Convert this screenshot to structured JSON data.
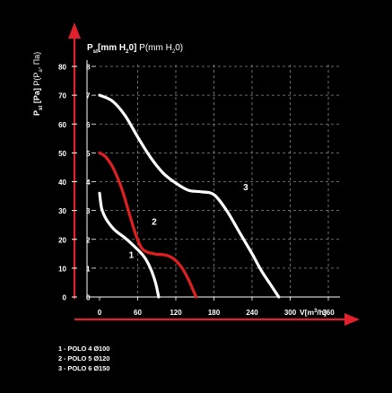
{
  "chart_data": {
    "type": "line",
    "title_pressure_mm": "P",
    "title_pressure_mm_sub": "st",
    "title_pressure_mm_units": "[mm H",
    "title_pressure_mm_units_sub": "2",
    "title_pressure_mm_units_end": "0]",
    "title_pressure_mm_alt": " P(mm H",
    "title_pressure_mm_alt_sub": "2",
    "title_pressure_mm_alt_end": "0)",
    "ylabel_pa_main": "P",
    "ylabel_pa_sub": "st",
    "ylabel_pa_rest": " [Pa]",
    "ylabel_pa_alt": " P(P",
    "ylabel_pa_alt_sub": "a",
    "ylabel_pa_alt_end": ", Па)",
    "xlabel_main": "V[m",
    "xlabel_sup": "3",
    "xlabel_end": "/h]",
    "x_ticks": [
      "0",
      "60",
      "120",
      "180",
      "240",
      "300",
      "360"
    ],
    "x_tick_values": [
      0,
      60,
      120,
      180,
      240,
      300,
      360
    ],
    "y_ticks_pa": [
      "0",
      "10",
      "20",
      "30",
      "40",
      "50",
      "60",
      "70",
      "80"
    ],
    "y_ticks_mm": [
      "0",
      "1",
      "2",
      "3",
      "4",
      "5",
      "6",
      "7",
      "8"
    ],
    "y_tick_values_pa": [
      0,
      10,
      20,
      30,
      40,
      50,
      60,
      70,
      80
    ],
    "xlim": [
      0,
      390
    ],
    "ylim_pa": [
      0,
      80
    ],
    "ylim_mm": [
      0,
      8
    ],
    "grid": true,
    "series": [
      {
        "name": "1",
        "color": "#ffffff",
        "x": [
          0,
          3,
          8,
          15,
          25,
          40,
          55,
          70,
          80,
          88,
          93
        ],
        "y": [
          36,
          31,
          28,
          25.5,
          23,
          20.5,
          17.5,
          14,
          10,
          5,
          0
        ]
      },
      {
        "name": "2",
        "color": "#e02020",
        "x": [
          0,
          10,
          22,
          35,
          48,
          58,
          68,
          85,
          105,
          118,
          130,
          140,
          148,
          152
        ],
        "y": [
          50,
          48.5,
          44.5,
          37.5,
          28,
          21,
          16.5,
          15,
          14.5,
          13,
          10,
          6,
          2,
          0
        ]
      },
      {
        "name": "3",
        "color": "#ffffff",
        "x": [
          0,
          20,
          40,
          60,
          80,
          100,
          120,
          140,
          160,
          180,
          200,
          220,
          240,
          255,
          270,
          282
        ],
        "y": [
          70,
          68,
          63,
          55.5,
          48.5,
          43,
          39.5,
          37,
          36.5,
          35.5,
          30,
          22.5,
          15,
          9,
          4,
          0
        ]
      }
    ],
    "curve_labels": [
      {
        "text": "1",
        "x": 50,
        "y": 13.5
      },
      {
        "text": "2",
        "x": 86,
        "y": 25
      },
      {
        "text": "3",
        "x": 230,
        "y": 37
      }
    ]
  },
  "legend": {
    "items": [
      "1 - POLO 4 Ø100",
      "2 - POLO 5 Ø120",
      "3 - POLO 6 Ø150"
    ]
  },
  "colors": {
    "background": "#000000",
    "axis_arrow": "#e0202a",
    "grid": "#8a8a8a",
    "text": "#ffffff"
  }
}
